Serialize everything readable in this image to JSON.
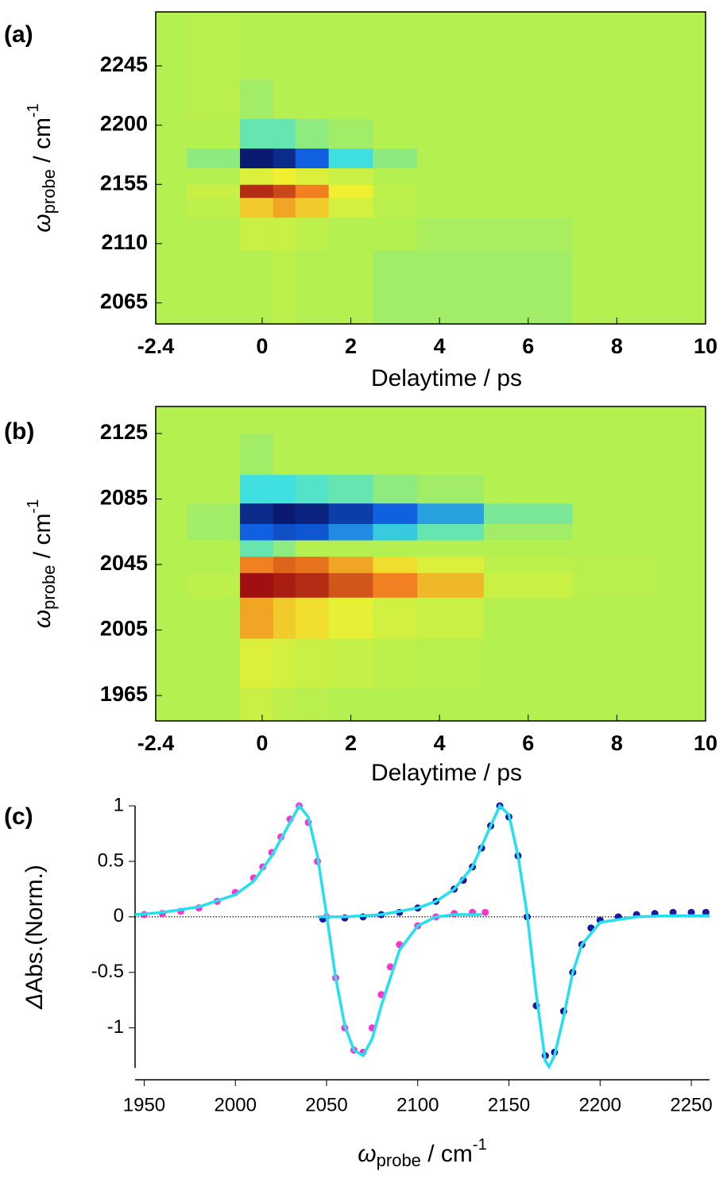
{
  "chart_data": [
    {
      "type": "contour",
      "label": "(a)",
      "xlabel": "Delaytime / ps",
      "ylabel": {
        "symbol": "ω",
        "subscript": "probe",
        "unit": " / cm",
        "superscript": "-1"
      },
      "xlim": [
        -2.4,
        10
      ],
      "xticks": [
        -2.4,
        0,
        2,
        4,
        6,
        8,
        10
      ],
      "ylim": [
        2049,
        2286
      ],
      "yticks": [
        2065,
        2110,
        2155,
        2200,
        2245
      ],
      "colorscale": [
        [
          -1,
          "#0a1a70"
        ],
        [
          -0.6,
          "#1060e0"
        ],
        [
          -0.3,
          "#40e0e0"
        ],
        [
          0,
          "#b4f050"
        ],
        [
          0.3,
          "#f0f030"
        ],
        [
          0.6,
          "#f08020"
        ],
        [
          1,
          "#a01010"
        ]
      ],
      "x": [
        -2.4,
        -1,
        0,
        0.5,
        1,
        2,
        3,
        4,
        6,
        8,
        10
      ],
      "y": [
        2060,
        2090,
        2120,
        2140,
        2150,
        2160,
        2175,
        2190,
        2220,
        2250
      ],
      "z": [
        [
          0,
          0,
          0,
          0.05,
          0,
          0,
          -0.05,
          -0.05,
          -0.05,
          0,
          0
        ],
        [
          0,
          0,
          0,
          0.05,
          0,
          0,
          -0.05,
          -0.05,
          -0.05,
          0,
          0
        ],
        [
          0,
          0,
          0.1,
          0.1,
          0.05,
          0,
          0,
          -0.03,
          -0.03,
          0,
          0
        ],
        [
          0,
          0.05,
          0.4,
          0.5,
          0.4,
          0.15,
          0.03,
          0,
          0,
          0,
          0
        ],
        [
          0,
          0.1,
          0.9,
          0.8,
          0.6,
          0.3,
          0.05,
          0,
          0,
          0,
          0
        ],
        [
          0,
          0,
          0.2,
          0.3,
          0.2,
          0.1,
          0,
          0,
          0,
          0,
          0
        ],
        [
          0,
          -0.1,
          -1,
          -0.9,
          -0.6,
          -0.3,
          -0.1,
          0,
          0,
          0,
          0
        ],
        [
          0,
          0,
          -0.2,
          -0.2,
          -0.1,
          -0.05,
          0,
          0,
          0,
          0,
          0
        ],
        [
          0,
          0.03,
          -0.05,
          0,
          0,
          0,
          0,
          0,
          0,
          0,
          0
        ],
        [
          0,
          0.03,
          0,
          0,
          0,
          0,
          0,
          0,
          0,
          0,
          0
        ]
      ]
    },
    {
      "type": "contour",
      "label": "(b)",
      "xlabel": "Delaytime / ps",
      "ylabel": {
        "symbol": "ω",
        "subscript": "probe",
        "unit": " / cm",
        "superscript": "-1"
      },
      "xlim": [
        -2.4,
        10
      ],
      "xticks": [
        -2.4,
        0,
        2,
        4,
        6,
        8,
        10
      ],
      "ylim": [
        1949.5,
        2141.5
      ],
      "yticks": [
        1965,
        2005,
        2045,
        2085,
        2125
      ],
      "colorscale": [
        [
          -1,
          "#0a1a70"
        ],
        [
          -0.6,
          "#1060e0"
        ],
        [
          -0.3,
          "#40e0e0"
        ],
        [
          0,
          "#b4f050"
        ],
        [
          0.3,
          "#f0f030"
        ],
        [
          0.6,
          "#f08020"
        ],
        [
          1,
          "#a01010"
        ]
      ],
      "x": [
        -2.4,
        -1,
        0,
        0.5,
        1,
        2,
        3,
        4,
        6,
        8,
        10
      ],
      "y": [
        1955,
        1985,
        2015,
        2035,
        2045,
        2055,
        2065,
        2075,
        2090,
        2110,
        2140
      ],
      "z": [
        [
          0,
          0,
          0.1,
          0.05,
          0.03,
          0,
          0,
          0,
          0,
          0,
          0
        ],
        [
          0,
          0,
          0.2,
          0.15,
          0.1,
          0.08,
          0.05,
          0.02,
          0,
          0,
          0
        ],
        [
          0,
          0,
          0.5,
          0.4,
          0.35,
          0.25,
          0.15,
          0.1,
          0,
          0,
          0
        ],
        [
          0,
          0.05,
          1,
          0.95,
          0.9,
          0.75,
          0.6,
          0.45,
          0.1,
          0.03,
          0
        ],
        [
          0,
          0,
          0.6,
          0.7,
          0.65,
          0.5,
          0.35,
          0.2,
          0.05,
          0.03,
          0
        ],
        [
          0,
          0,
          -0.2,
          -0.1,
          0,
          0,
          0,
          0,
          0,
          0,
          0
        ],
        [
          0,
          -0.05,
          -0.6,
          -0.7,
          -0.65,
          -0.5,
          -0.35,
          -0.2,
          -0.05,
          0,
          0
        ],
        [
          0,
          -0.05,
          -0.9,
          -1,
          -0.95,
          -0.8,
          -0.6,
          -0.45,
          -0.15,
          0,
          0
        ],
        [
          0,
          0,
          -0.3,
          -0.3,
          -0.25,
          -0.2,
          -0.1,
          -0.05,
          0,
          0,
          0
        ],
        [
          0,
          0,
          -0.05,
          0,
          0,
          0,
          0,
          0,
          0,
          0,
          0
        ],
        [
          0,
          0,
          0,
          0,
          0,
          0,
          0,
          0,
          0,
          0,
          0
        ]
      ]
    },
    {
      "type": "scatter",
      "label": "(c)",
      "xlabel": {
        "symbol": "ω",
        "subscript": "probe",
        "unit": " / cm",
        "superscript": "-1"
      },
      "ylabel": {
        "symbol": "Δ",
        "rest": "Abs.(Norm.)"
      },
      "xlim": [
        1945,
        2260
      ],
      "xticks": [
        1950,
        2000,
        2050,
        2100,
        2150,
        2200,
        2250
      ],
      "ylim": [
        -1.36,
        1.0
      ],
      "yticks": [
        -1,
        -0.5,
        0,
        0.5,
        1
      ],
      "series": [
        {
          "style": "markers",
          "color": "#ff33cc",
          "x": [
            1950,
            1960,
            1970,
            1980,
            1990,
            2000,
            2010,
            2015,
            2020,
            2025,
            2030,
            2035,
            2040,
            2045,
            2050,
            2055,
            2060,
            2065,
            2070,
            2075,
            2080,
            2085,
            2090,
            2100,
            2110,
            2120,
            2130,
            2137
          ],
          "values": [
            0.02,
            0.03,
            0.05,
            0.08,
            0.14,
            0.22,
            0.35,
            0.45,
            0.58,
            0.72,
            0.88,
            1.0,
            0.85,
            0.5,
            0.0,
            -0.55,
            -1.0,
            -1.2,
            -1.22,
            -1.0,
            -0.7,
            -0.45,
            -0.25,
            -0.08,
            0.0,
            0.03,
            0.04,
            0.04
          ]
        },
        {
          "style": "markers",
          "color": "#1a1aa0",
          "x": [
            2048,
            2060,
            2070,
            2080,
            2090,
            2100,
            2110,
            2120,
            2125,
            2130,
            2135,
            2140,
            2145,
            2150,
            2155,
            2160,
            2165,
            2170,
            2175,
            2180,
            2185,
            2190,
            2195,
            2200,
            2210,
            2220,
            2230,
            2240,
            2250,
            2258
          ],
          "values": [
            -0.02,
            -0.01,
            0.0,
            0.02,
            0.04,
            0.08,
            0.14,
            0.25,
            0.33,
            0.45,
            0.62,
            0.82,
            1.0,
            0.9,
            0.55,
            0.0,
            -0.8,
            -1.25,
            -1.22,
            -0.85,
            -0.5,
            -0.25,
            -0.1,
            -0.03,
            0.0,
            0.02,
            0.03,
            0.04,
            0.04,
            0.04
          ]
        },
        {
          "style": "line",
          "color": "#22e0f0",
          "x": [
            1945,
            1960,
            1980,
            2000,
            2010,
            2020,
            2030,
            2035,
            2040,
            2045,
            2050,
            2055,
            2060,
            2065,
            2070,
            2075,
            2080,
            2090,
            2100,
            2110,
            2120,
            2135
          ],
          "values": [
            0.02,
            0.04,
            0.09,
            0.2,
            0.32,
            0.55,
            0.85,
            1.0,
            0.9,
            0.55,
            0.02,
            -0.55,
            -0.98,
            -1.2,
            -1.25,
            -1.1,
            -0.8,
            -0.3,
            -0.08,
            0.0,
            0.02,
            0.02
          ]
        },
        {
          "style": "line",
          "color": "#22e0f0",
          "x": [
            2045,
            2060,
            2080,
            2100,
            2110,
            2120,
            2130,
            2140,
            2145,
            2150,
            2155,
            2160,
            2165,
            2170,
            2172,
            2175,
            2180,
            2185,
            2190,
            2200,
            2220,
            2240,
            2260
          ],
          "values": [
            0.0,
            0.0,
            0.02,
            0.08,
            0.14,
            0.25,
            0.45,
            0.82,
            1.0,
            0.92,
            0.55,
            0.02,
            -0.7,
            -1.3,
            -1.35,
            -1.25,
            -0.9,
            -0.5,
            -0.25,
            -0.05,
            0.0,
            0.01,
            0.01
          ]
        }
      ]
    }
  ]
}
